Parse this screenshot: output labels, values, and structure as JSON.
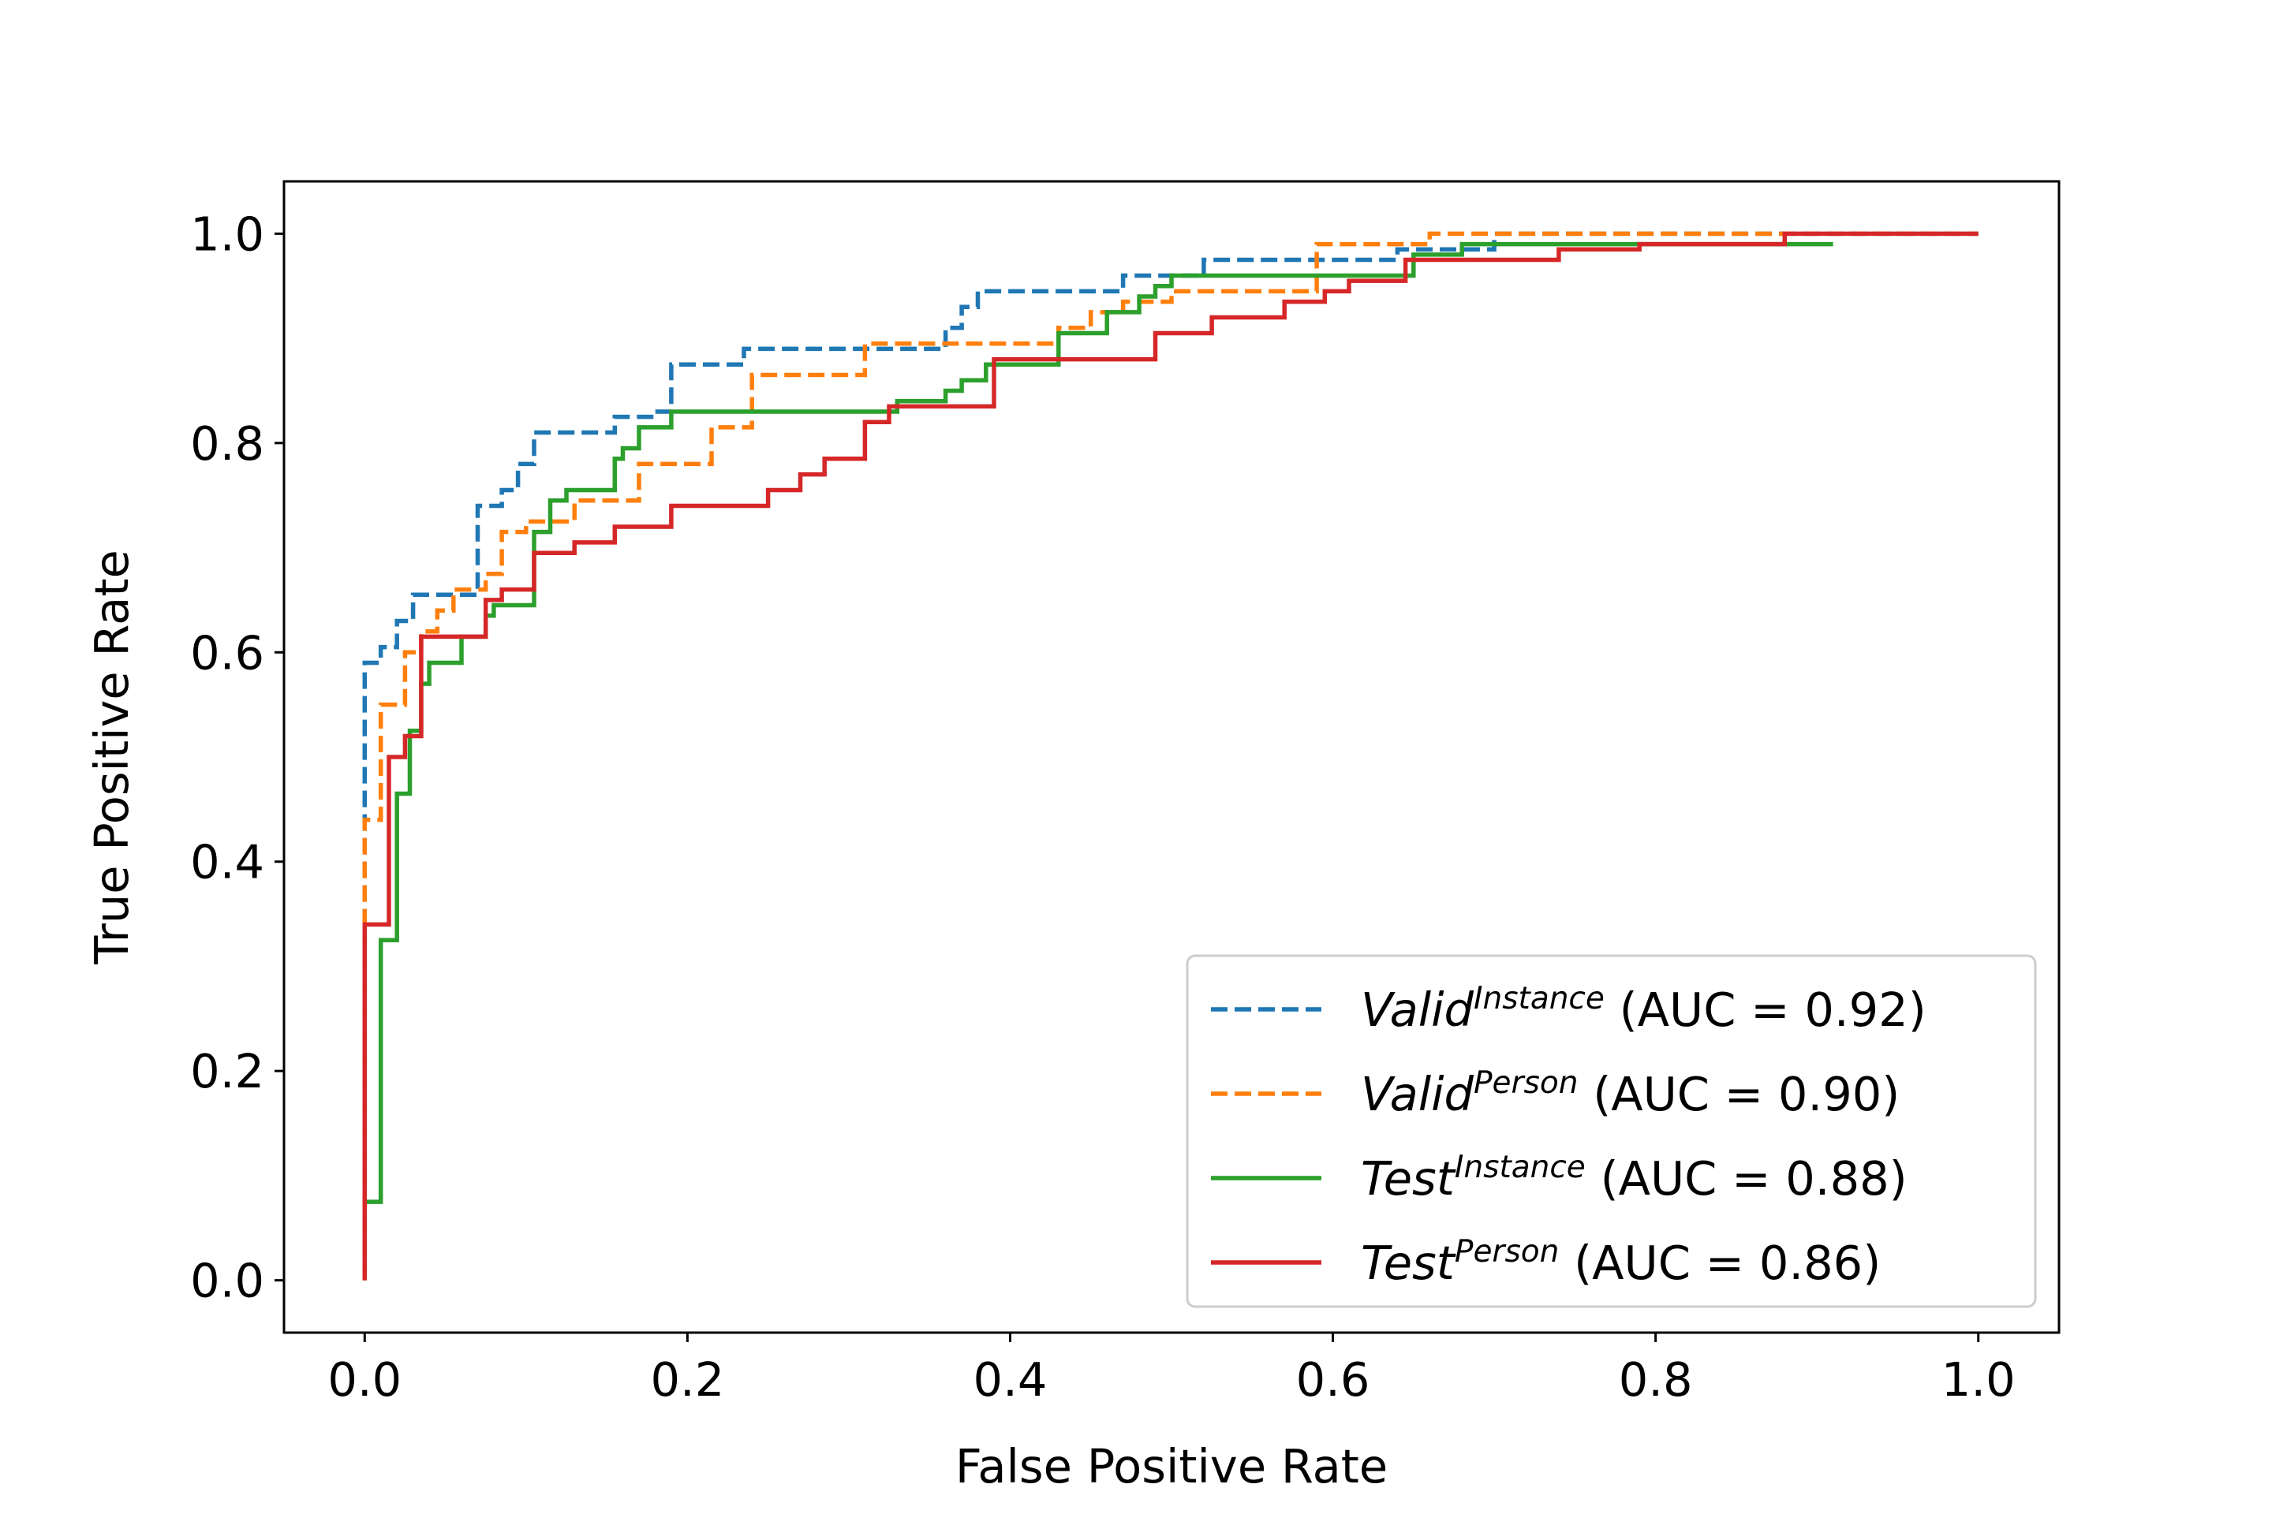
{
  "chart_data": {
    "type": "line",
    "title": "",
    "xlabel": "False Positive Rate",
    "ylabel": "True Positive Rate",
    "xlim": [
      -0.05,
      1.05
    ],
    "ylim": [
      -0.05,
      1.05
    ],
    "xticks": [
      "0.0",
      "0.2",
      "0.4",
      "0.6",
      "0.8",
      "1.0"
    ],
    "yticks": [
      "0.0",
      "0.2",
      "0.4",
      "0.6",
      "0.8",
      "1.0"
    ],
    "grid": false,
    "legend_position": "lower-right",
    "series": [
      {
        "name": "Valid",
        "name_superscript": "Instance",
        "auc_label": "(AUC = 0.92)",
        "color": "#1f77b4",
        "linestyle": "dashed",
        "x": [
          0,
          0,
          0.01,
          0.01,
          0.02,
          0.02,
          0.03,
          0.03,
          0.07,
          0.07,
          0.085,
          0.085,
          0.095,
          0.095,
          0.105,
          0.105,
          0.155,
          0.155,
          0.18,
          0.18,
          0.19,
          0.19,
          0.235,
          0.235,
          0.36,
          0.36,
          0.37,
          0.37,
          0.38,
          0.38,
          0.47,
          0.47,
          0.52,
          0.52,
          0.64,
          0.64,
          0.7,
          0.7,
          1.0
        ],
        "y": [
          0,
          0.59,
          0.59,
          0.605,
          0.605,
          0.63,
          0.63,
          0.655,
          0.655,
          0.74,
          0.74,
          0.755,
          0.755,
          0.78,
          0.78,
          0.81,
          0.81,
          0.825,
          0.825,
          0.83,
          0.83,
          0.875,
          0.875,
          0.89,
          0.89,
          0.91,
          0.91,
          0.93,
          0.93,
          0.945,
          0.945,
          0.96,
          0.96,
          0.975,
          0.975,
          0.985,
          0.985,
          1.0,
          1.0
        ]
      },
      {
        "name": "Valid",
        "name_superscript": "Person",
        "auc_label": "(AUC = 0.90)",
        "color": "#ff7f0e",
        "linestyle": "dashed",
        "x": [
          0,
          0,
          0.01,
          0.01,
          0.025,
          0.025,
          0.035,
          0.035,
          0.045,
          0.045,
          0.055,
          0.055,
          0.075,
          0.075,
          0.085,
          0.085,
          0.1,
          0.1,
          0.13,
          0.13,
          0.17,
          0.17,
          0.215,
          0.215,
          0.24,
          0.24,
          0.31,
          0.31,
          0.43,
          0.43,
          0.45,
          0.45,
          0.47,
          0.47,
          0.5,
          0.5,
          0.59,
          0.59,
          0.66,
          0.66,
          1.0
        ],
        "y": [
          0,
          0.44,
          0.44,
          0.55,
          0.55,
          0.6,
          0.6,
          0.62,
          0.62,
          0.64,
          0.64,
          0.66,
          0.66,
          0.675,
          0.675,
          0.715,
          0.715,
          0.725,
          0.725,
          0.745,
          0.745,
          0.78,
          0.78,
          0.815,
          0.815,
          0.865,
          0.865,
          0.895,
          0.895,
          0.91,
          0.91,
          0.925,
          0.925,
          0.935,
          0.935,
          0.945,
          0.945,
          0.99,
          0.99,
          1.0,
          1.0
        ]
      },
      {
        "name": "Test",
        "name_superscript": "Instance",
        "auc_label": "(AUC = 0.88)",
        "color": "#2ca02c",
        "linestyle": "solid",
        "x": [
          0,
          0,
          0.01,
          0.01,
          0.02,
          0.02,
          0.028,
          0.028,
          0.035,
          0.035,
          0.04,
          0.04,
          0.06,
          0.06,
          0.075,
          0.075,
          0.08,
          0.08,
          0.105,
          0.105,
          0.115,
          0.115,
          0.125,
          0.125,
          0.155,
          0.155,
          0.16,
          0.16,
          0.17,
          0.17,
          0.19,
          0.19,
          0.33,
          0.33,
          0.36,
          0.36,
          0.37,
          0.37,
          0.385,
          0.385,
          0.43,
          0.43,
          0.46,
          0.46,
          0.48,
          0.48,
          0.49,
          0.49,
          0.5,
          0.5,
          0.65,
          0.65,
          0.68,
          0.68,
          0.91
        ],
        "y": [
          0.075,
          0.075,
          0.075,
          0.325,
          0.325,
          0.465,
          0.465,
          0.525,
          0.525,
          0.57,
          0.57,
          0.59,
          0.59,
          0.615,
          0.615,
          0.635,
          0.635,
          0.645,
          0.645,
          0.715,
          0.715,
          0.745,
          0.745,
          0.755,
          0.755,
          0.785,
          0.785,
          0.795,
          0.795,
          0.815,
          0.815,
          0.83,
          0.83,
          0.84,
          0.84,
          0.85,
          0.85,
          0.86,
          0.86,
          0.875,
          0.875,
          0.905,
          0.905,
          0.925,
          0.925,
          0.94,
          0.94,
          0.95,
          0.95,
          0.96,
          0.96,
          0.98,
          0.98,
          0.99,
          0.99
        ]
      },
      {
        "name": "Test",
        "name_superscript": "Person",
        "auc_label": "(AUC = 0.86)",
        "color": "#d62728",
        "linestyle": "solid",
        "x": [
          0,
          0,
          0.015,
          0.015,
          0.025,
          0.025,
          0.035,
          0.035,
          0.075,
          0.075,
          0.085,
          0.085,
          0.105,
          0.105,
          0.13,
          0.13,
          0.155,
          0.155,
          0.19,
          0.19,
          0.25,
          0.25,
          0.27,
          0.27,
          0.285,
          0.285,
          0.31,
          0.31,
          0.325,
          0.325,
          0.39,
          0.39,
          0.49,
          0.49,
          0.525,
          0.525,
          0.57,
          0.57,
          0.595,
          0.595,
          0.61,
          0.61,
          0.645,
          0.645,
          0.74,
          0.74,
          0.79,
          0.79,
          0.88,
          0.88,
          1.0
        ],
        "y": [
          0,
          0.34,
          0.34,
          0.5,
          0.5,
          0.52,
          0.52,
          0.615,
          0.615,
          0.65,
          0.65,
          0.66,
          0.66,
          0.695,
          0.695,
          0.705,
          0.705,
          0.72,
          0.72,
          0.74,
          0.74,
          0.755,
          0.755,
          0.77,
          0.77,
          0.785,
          0.785,
          0.82,
          0.82,
          0.835,
          0.835,
          0.88,
          0.88,
          0.905,
          0.905,
          0.92,
          0.92,
          0.935,
          0.935,
          0.945,
          0.945,
          0.955,
          0.955,
          0.975,
          0.975,
          0.985,
          0.985,
          0.99,
          0.99,
          1.0,
          1.0
        ]
      }
    ]
  }
}
